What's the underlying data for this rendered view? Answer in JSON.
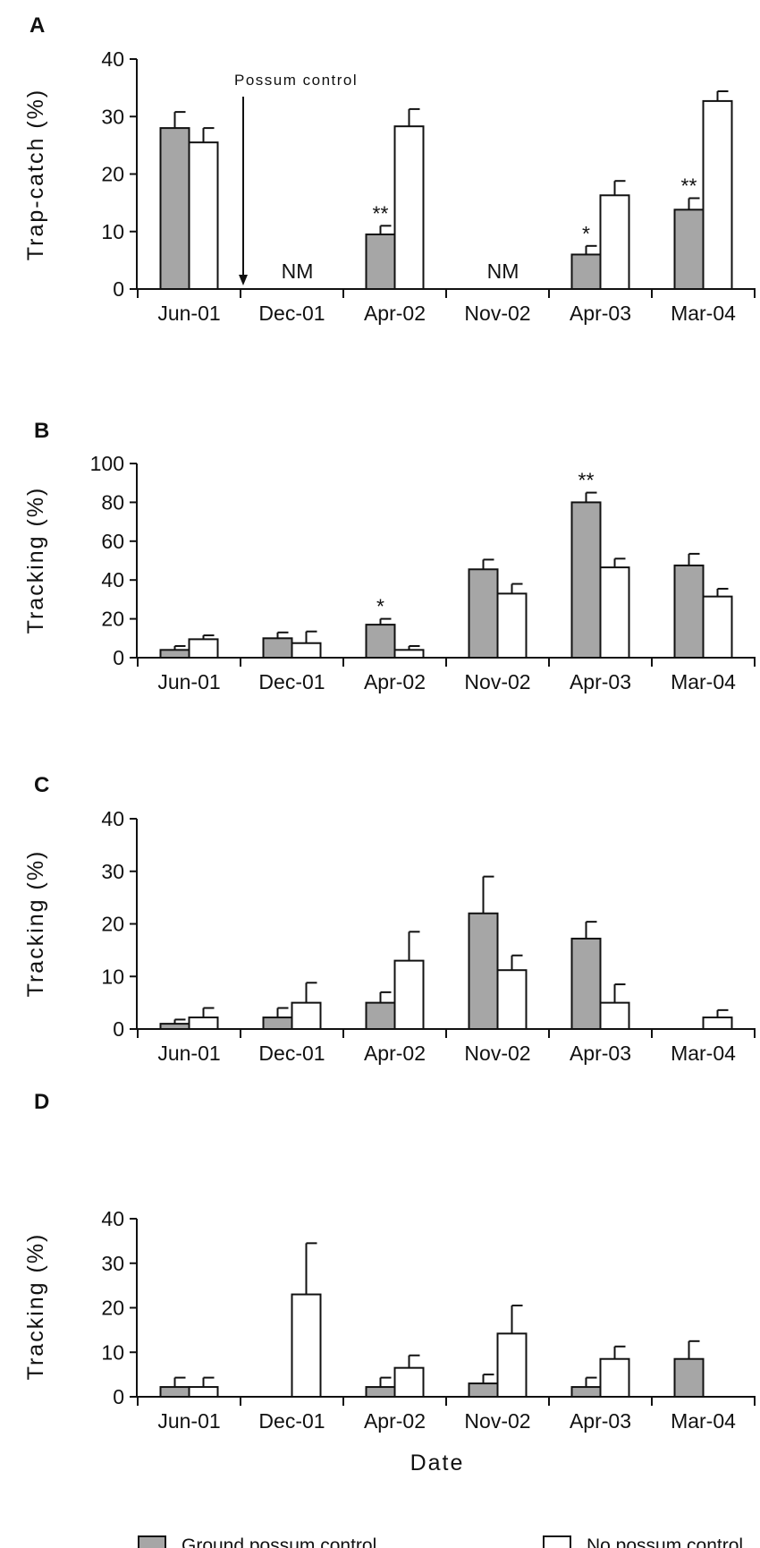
{
  "colors": {
    "ground": "#a6a6a6",
    "none": "#ffffff",
    "stroke": "#111111"
  },
  "xlabel": "Date",
  "legend": {
    "placement": "bottom",
    "ground_label": "Ground possum control",
    "none_label": "No possum control"
  },
  "chart_data": [
    {
      "panel": "A",
      "type": "bar",
      "ylabel": "Trap-catch (%)",
      "ylim": [
        0,
        40
      ],
      "yticks": [
        "0",
        "10",
        "20",
        "30",
        "40"
      ],
      "categories": [
        "Jun-01",
        "Dec-01",
        "Apr-02",
        "Nov-02",
        "Apr-03",
        "Mar-04"
      ],
      "series": [
        {
          "name": "Ground possum control",
          "values": [
            28,
            null,
            9.5,
            null,
            6,
            13.8
          ],
          "errors": [
            2.8,
            null,
            1.5,
            null,
            1.5,
            2
          ]
        },
        {
          "name": "No possum control",
          "values": [
            25.5,
            null,
            28.3,
            null,
            16.3,
            32.7
          ],
          "errors": [
            2.5,
            null,
            3,
            null,
            2.5,
            1.7
          ]
        }
      ],
      "significance": [
        "",
        "",
        "**",
        "",
        "*",
        "**"
      ],
      "not_measured": [
        "",
        "NM",
        "",
        "NM",
        "",
        ""
      ],
      "annotation": {
        "text": "Possum control",
        "between": [
          "Jun-01",
          "Dec-01"
        ]
      }
    },
    {
      "panel": "B",
      "type": "bar",
      "ylabel": "Tracking (%)",
      "ylim": [
        0,
        100
      ],
      "yticks": [
        "0",
        "20",
        "40",
        "60",
        "80",
        "100"
      ],
      "categories": [
        "Jun-01",
        "Dec-01",
        "Apr-02",
        "Nov-02",
        "Apr-03",
        "Mar-04"
      ],
      "series": [
        {
          "name": "Ground possum control",
          "values": [
            4,
            10,
            17,
            45.5,
            80,
            47.5
          ],
          "errors": [
            2,
            3,
            3,
            5,
            5,
            6
          ]
        },
        {
          "name": "No possum control",
          "values": [
            9.5,
            7.5,
            4,
            33,
            46.5,
            31.5
          ],
          "errors": [
            2,
            6,
            2,
            5,
            4.5,
            4
          ]
        }
      ],
      "significance": [
        "",
        "",
        "*",
        "",
        "**",
        ""
      ],
      "not_measured": [
        "",
        "",
        "",
        "",
        "",
        ""
      ]
    },
    {
      "panel": "C",
      "type": "bar",
      "ylabel": "Tracking (%)",
      "ylim": [
        0,
        40
      ],
      "yticks": [
        "0",
        "10",
        "20",
        "30",
        "40"
      ],
      "categories": [
        "Jun-01",
        "Dec-01",
        "Apr-02",
        "Nov-02",
        "Apr-03",
        "Mar-04"
      ],
      "series": [
        {
          "name": "Ground possum control",
          "values": [
            1,
            2.2,
            5,
            22,
            17.2,
            null
          ],
          "errors": [
            0.8,
            1.8,
            2,
            7,
            3.2,
            null
          ]
        },
        {
          "name": "No possum control",
          "values": [
            2.2,
            5,
            13,
            11.2,
            5,
            2.2
          ],
          "errors": [
            1.8,
            3.8,
            5.5,
            2.8,
            3.5,
            1.4
          ]
        }
      ],
      "significance": [
        "",
        "",
        "",
        "",
        "",
        ""
      ],
      "not_measured": [
        "",
        "",
        "",
        "",
        "",
        ""
      ]
    },
    {
      "panel": "D",
      "type": "bar",
      "ylabel": "Tracking (%)",
      "ylim": [
        0,
        40
      ],
      "yticks": [
        "0",
        "10",
        "20",
        "30",
        "40"
      ],
      "categories": [
        "Jun-01",
        "Dec-01",
        "Apr-02",
        "Nov-02",
        "Apr-03",
        "Mar-04"
      ],
      "series": [
        {
          "name": "Ground possum control",
          "values": [
            2.2,
            null,
            2.2,
            3,
            2.2,
            8.5
          ],
          "errors": [
            2.1,
            null,
            2.1,
            2,
            2.1,
            4
          ]
        },
        {
          "name": "No possum control",
          "values": [
            2.2,
            23,
            6.5,
            14.2,
            8.5,
            null
          ],
          "errors": [
            2.1,
            11.5,
            2.8,
            6.3,
            2.8,
            null
          ]
        }
      ],
      "significance": [
        "",
        "",
        "",
        "",
        "",
        ""
      ],
      "not_measured": [
        "",
        "",
        "",
        "",
        "",
        ""
      ]
    }
  ]
}
